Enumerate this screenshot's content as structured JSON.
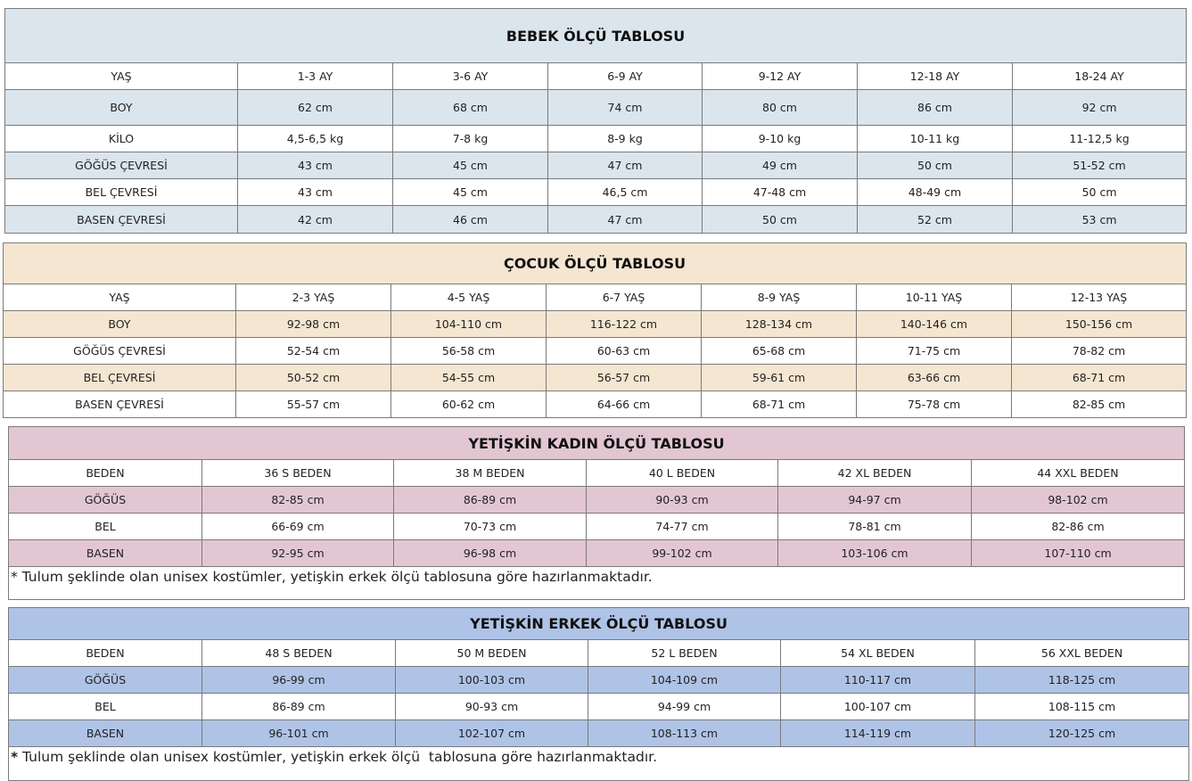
{
  "tables": [
    {
      "title": "BEBEK ÖLÇÜ TABLOSU",
      "color": "#dbe5ee",
      "header": [
        "YAŞ",
        "1-3 AY",
        "3-6 AY",
        "6-9 AY",
        "9-12 AY",
        "12-18 AY",
        "18-24 AY"
      ],
      "rows": [
        [
          "BOY",
          "62 cm",
          "68 cm",
          "74 cm",
          "80 cm",
          "86 cm",
          "92 cm"
        ],
        [
          "KİLO",
          "4,5-6,5 kg",
          "7-8 kg",
          "8-9 kg",
          "9-10 kg",
          "10-11 kg",
          "11-12,5 kg"
        ],
        [
          "GÖĞÜS ÇEVRESİ",
          "43 cm",
          "45 cm",
          "47 cm",
          "49 cm",
          "50 cm",
          "51-52 cm"
        ],
        [
          "BEL ÇEVRESİ",
          "43 cm",
          "45 cm",
          "46,5 cm",
          "47-48 cm",
          "48-49 cm",
          "50 cm"
        ],
        [
          "BASEN ÇEVRESİ",
          "42 cm",
          "46 cm",
          "47 cm",
          "50 cm",
          "52 cm",
          "53 cm"
        ]
      ]
    },
    {
      "title": "ÇOCUK ÖLÇÜ TABLOSU",
      "color": "#f5e6d1",
      "header": [
        "YAŞ",
        "2-3 YAŞ",
        "4-5 YAŞ",
        "6-7 YAŞ",
        "8-9 YAŞ",
        "10-11 YAŞ",
        "12-13 YAŞ"
      ],
      "rows": [
        [
          "BOY",
          "92-98 cm",
          "104-110 cm",
          "116-122 cm",
          "128-134 cm",
          "140-146 cm",
          "150-156 cm"
        ],
        [
          "GÖĞÜS ÇEVRESİ",
          "52-54 cm",
          "56-58 cm",
          "60-63 cm",
          "65-68 cm",
          "71-75 cm",
          "78-82 cm"
        ],
        [
          "BEL ÇEVRESİ",
          "50-52 cm",
          "54-55 cm",
          "56-57 cm",
          "59-61 cm",
          "63-66 cm",
          "68-71 cm"
        ],
        [
          "BASEN ÇEVRESİ",
          "55-57 cm",
          "60-62 cm",
          "64-66 cm",
          "68-71 cm",
          "75-78 cm",
          "82-85 cm"
        ]
      ]
    },
    {
      "title": "YETİŞKİN KADIN ÖLÇÜ TABLOSU",
      "color": "#e2c7d3",
      "header": [
        "BEDEN",
        "36 S BEDEN",
        "38 M BEDEN",
        "40 L BEDEN",
        "42 XL BEDEN",
        "44 XXL BEDEN"
      ],
      "rows": [
        [
          "GÖĞÜS",
          "82-85 cm",
          "86-89 cm",
          "90-93 cm",
          "94-97 cm",
          "98-102 cm"
        ],
        [
          "BEL",
          "66-69 cm",
          "70-73 cm",
          "74-77 cm",
          "78-81 cm",
          "82-86 cm"
        ],
        [
          "BASEN",
          "92-95 cm",
          "96-98 cm",
          "99-102 cm",
          "103-106 cm",
          "107-110 cm"
        ]
      ],
      "note_star": "*",
      "note": " Tulum şeklinde olan unisex kostümler, yetişkin erkek ölçü tablosuna göre hazırlanmaktadır."
    },
    {
      "title": "YETİŞKİN ERKEK ÖLÇÜ TABLOSU",
      "color": "#afc3e6",
      "header": [
        "BEDEN",
        "48 S BEDEN",
        "50 M BEDEN",
        "52 L BEDEN",
        "54 XL BEDEN",
        "56 XXL BEDEN"
      ],
      "rows": [
        [
          "GÖĞÜS",
          "96-99 cm",
          "100-103 cm",
          "104-109 cm",
          "110-117 cm",
          "118-125 cm"
        ],
        [
          "BEL",
          "86-89 cm",
          "90-93 cm",
          "94-99 cm",
          "100-107 cm",
          "108-115 cm"
        ],
        [
          "BASEN",
          "96-101 cm",
          "102-107 cm",
          "108-113 cm",
          "114-119 cm",
          "120-125 cm"
        ]
      ],
      "note_star": "*",
      "note": " Tulum şeklinde olan unisex kostümler, yetişkin erkek ölçü  tablosuna göre hazırlanmaktadır."
    }
  ]
}
